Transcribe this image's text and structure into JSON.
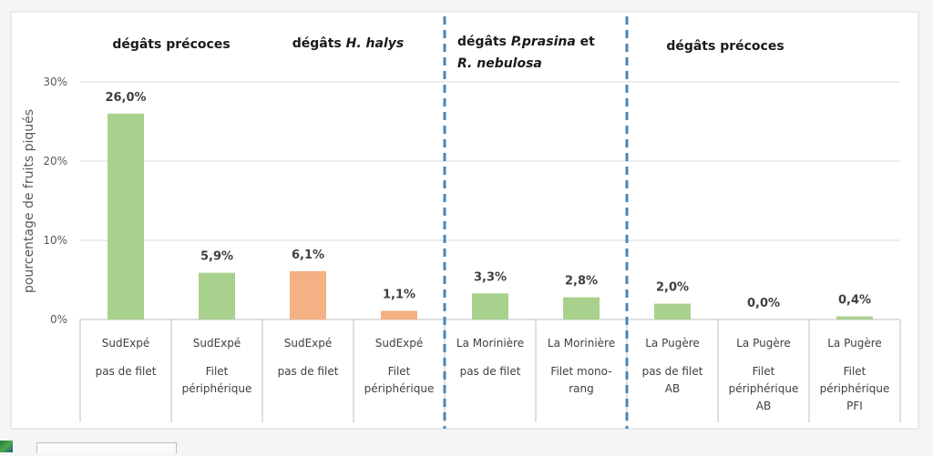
{
  "chart_data": {
    "type": "bar",
    "ylabel": "pourcentage de fruits piqués",
    "ylim": [
      0,
      30
    ],
    "y_ticks": [
      "0%",
      "10%",
      "20%",
      "30%"
    ],
    "y_tick_values": [
      0,
      10,
      20,
      30
    ],
    "grid": true,
    "colors": {
      "green": "#a9d18e",
      "orange": "#f4b183",
      "divider": "#4a86b4"
    },
    "bars": [
      {
        "site": "SudExpé",
        "treatment": [
          "pas de filet"
        ],
        "value": 26.0,
        "label": "26,0%",
        "color": "green"
      },
      {
        "site": "SudExpé",
        "treatment": [
          "Filet",
          "périphérique"
        ],
        "value": 5.9,
        "label": "5,9%",
        "color": "green"
      },
      {
        "site": "SudExpé",
        "treatment": [
          "pas de filet"
        ],
        "value": 6.1,
        "label": "6,1%",
        "color": "orange"
      },
      {
        "site": "SudExpé",
        "treatment": [
          "Filet",
          "périphérique"
        ],
        "value": 1.1,
        "label": "1,1%",
        "color": "orange"
      },
      {
        "site": "La Morinière",
        "treatment": [
          "pas de filet"
        ],
        "value": 3.3,
        "label": "3,3%",
        "color": "green"
      },
      {
        "site": "La Morinière",
        "treatment": [
          "Filet mono-",
          "rang"
        ],
        "value": 2.8,
        "label": "2,8%",
        "color": "green"
      },
      {
        "site": "La Pugère",
        "treatment": [
          "pas de filet",
          "AB"
        ],
        "value": 2.0,
        "label": "2,0%",
        "color": "green"
      },
      {
        "site": "La Pugère",
        "treatment": [
          "Filet",
          "périphérique",
          "AB"
        ],
        "value": 0.0,
        "label": "0,0%",
        "color": "green"
      },
      {
        "site": "La Pugère",
        "treatment": [
          "Filet",
          "périphérique",
          "PFI"
        ],
        "value": 0.4,
        "label": "0,4%",
        "color": "green"
      }
    ],
    "group_headers": [
      {
        "parts": [
          {
            "text": "dégâts précoces",
            "italic": false
          }
        ]
      },
      {
        "parts": [
          {
            "text": "dégâts ",
            "italic": false
          },
          {
            "text": "H. halys",
            "italic": true
          }
        ]
      },
      {
        "parts": [
          {
            "text": "dégâts ",
            "italic": false
          },
          {
            "text": "P.prasina",
            "italic": true
          },
          {
            "text": " et",
            "italic": false
          }
        ],
        "line2": [
          {
            "text": "R. nebulosa",
            "italic": true
          }
        ]
      },
      {
        "parts": [
          {
            "text": "dégâts précoces",
            "italic": false
          }
        ]
      }
    ],
    "divider_after_bar": [
      3,
      5
    ]
  }
}
